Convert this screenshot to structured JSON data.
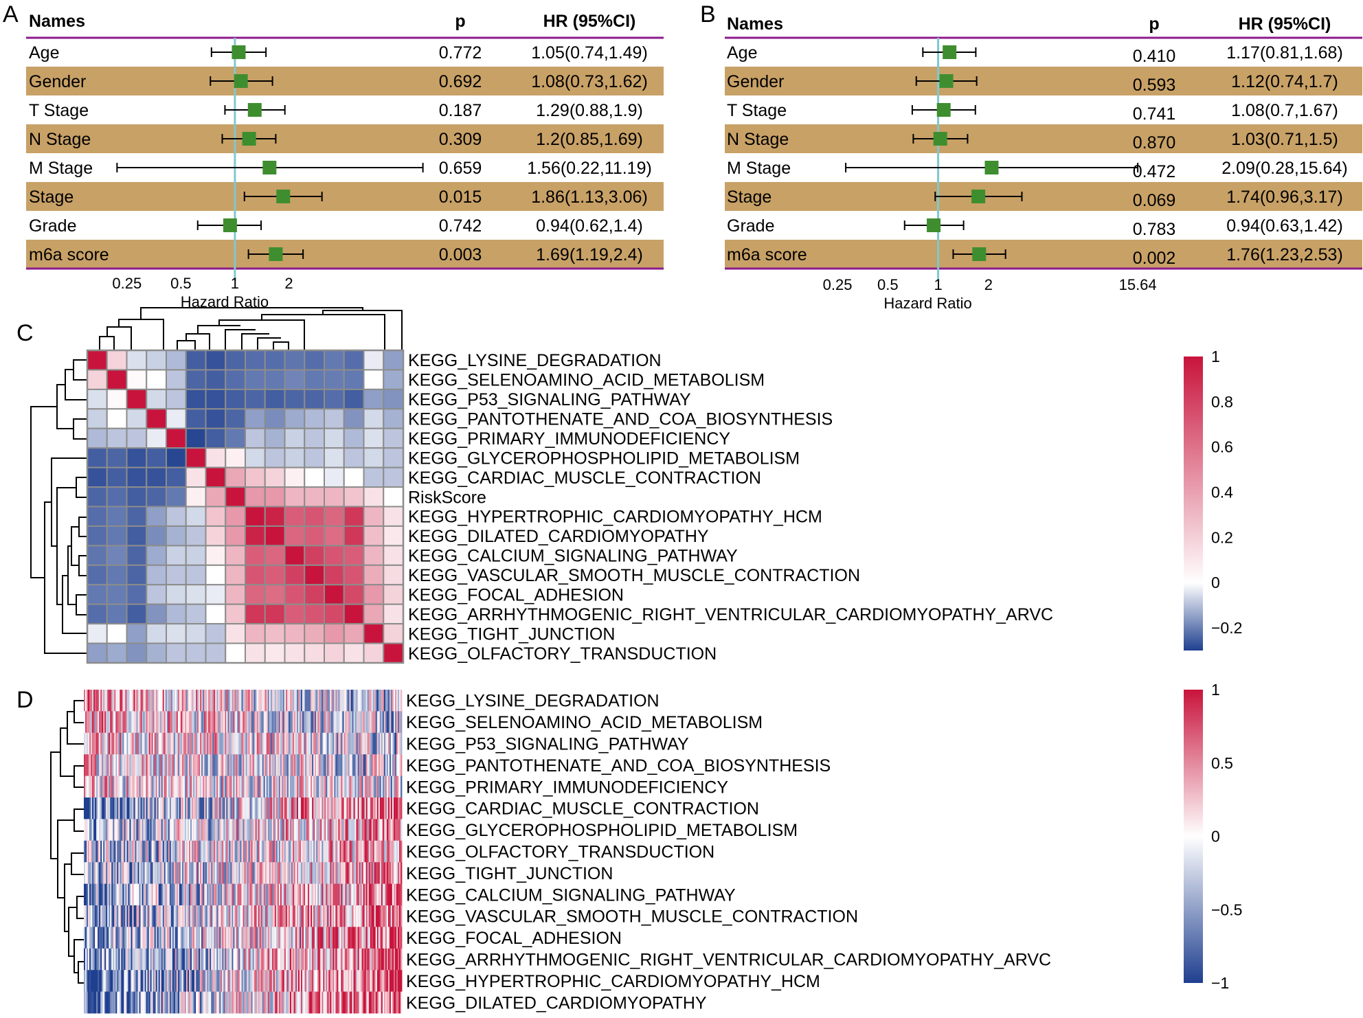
{
  "figure": {
    "panel_labels": [
      "A",
      "B",
      "C",
      "D"
    ]
  },
  "colors": {
    "row_band": "#C8A166",
    "header_rule": "#8B1A8B",
    "ref_line": "#7FC8CF",
    "marker": "#3E8E2F",
    "heat_low": "#1F3F8F",
    "heat_mid": "#FFFFFF",
    "heat_high": "#C8143C"
  },
  "chart_data": [
    {
      "panel": "A",
      "type": "forest",
      "headers": {
        "names": "Names",
        "p": "p",
        "hr": "HR (95%CI)"
      },
      "xlabel": "Hazard Ratio",
      "xscale": "log",
      "xlim": [
        0.135,
        14.0
      ],
      "xticks": [
        {
          "value": 0.25,
          "label": "0.25"
        },
        {
          "value": 0.5,
          "label": "0.5"
        },
        {
          "value": 1,
          "label": "1"
        },
        {
          "value": 2,
          "label": "2"
        }
      ],
      "reference": 1,
      "rows": [
        {
          "name": "Age",
          "hr": 1.05,
          "lo": 0.74,
          "hi": 1.49,
          "p": "0.772",
          "hr_text": "1.05(0.74,1.49)"
        },
        {
          "name": "Gender",
          "hr": 1.08,
          "lo": 0.73,
          "hi": 1.62,
          "p": "0.692",
          "hr_text": "1.08(0.73,1.62)"
        },
        {
          "name": "T Stage",
          "hr": 1.29,
          "lo": 0.88,
          "hi": 1.9,
          "p": "0.187",
          "hr_text": "1.29(0.88,1.9)"
        },
        {
          "name": "N Stage",
          "hr": 1.2,
          "lo": 0.85,
          "hi": 1.69,
          "p": "0.309",
          "hr_text": "1.2(0.85,1.69)"
        },
        {
          "name": "M Stage",
          "hr": 1.56,
          "lo": 0.22,
          "hi": 11.19,
          "p": "0.659",
          "hr_text": "1.56(0.22,11.19)"
        },
        {
          "name": "Stage",
          "hr": 1.86,
          "lo": 1.13,
          "hi": 3.06,
          "p": "0.015",
          "hr_text": "1.86(1.13,3.06)"
        },
        {
          "name": "Grade",
          "hr": 0.94,
          "lo": 0.62,
          "hi": 1.4,
          "p": "0.742",
          "hr_text": "0.94(0.62,1.4)"
        },
        {
          "name": "m6a score",
          "hr": 1.69,
          "lo": 1.19,
          "hi": 2.4,
          "p": "0.003",
          "hr_text": "1.69(1.19,2.4)"
        }
      ]
    },
    {
      "panel": "B",
      "type": "forest",
      "headers": {
        "names": "Names",
        "p": "p",
        "hr": "HR (95%CI)"
      },
      "xlabel": "Hazard Ratio",
      "xscale": "log",
      "xlim": [
        0.13,
        17.5
      ],
      "xticks": [
        {
          "value": 0.25,
          "label": "0.25"
        },
        {
          "value": 0.5,
          "label": "0.5"
        },
        {
          "value": 1,
          "label": "1"
        },
        {
          "value": 2,
          "label": "2"
        },
        {
          "value": 15.64,
          "label": "15.64"
        }
      ],
      "reference": 1,
      "rows": [
        {
          "name": "Age",
          "hr": 1.17,
          "lo": 0.81,
          "hi": 1.68,
          "p": "0.410",
          "hr_text": "1.17(0.81,1.68)"
        },
        {
          "name": "Gender",
          "hr": 1.12,
          "lo": 0.74,
          "hi": 1.7,
          "p": "0.593",
          "hr_text": "1.12(0.74,1.7)"
        },
        {
          "name": "T Stage",
          "hr": 1.08,
          "lo": 0.7,
          "hi": 1.67,
          "p": "0.741",
          "hr_text": "1.08(0.7,1.67)"
        },
        {
          "name": "N Stage",
          "hr": 1.03,
          "lo": 0.71,
          "hi": 1.5,
          "p": "0.870",
          "hr_text": "1.03(0.71,1.5)"
        },
        {
          "name": "M Stage",
          "hr": 2.09,
          "lo": 0.28,
          "hi": 15.64,
          "p": "0.472",
          "hr_text": "2.09(0.28,15.64)"
        },
        {
          "name": "Stage",
          "hr": 1.74,
          "lo": 0.96,
          "hi": 3.17,
          "p": "0.069",
          "hr_text": "1.74(0.96,3.17)"
        },
        {
          "name": "Grade",
          "hr": 0.94,
          "lo": 0.63,
          "hi": 1.42,
          "p": "0.783",
          "hr_text": "0.94(0.63,1.42)"
        },
        {
          "name": "m6a score",
          "hr": 1.76,
          "lo": 1.23,
          "hi": 2.53,
          "p": "0.002",
          "hr_text": "1.76(1.23,2.53)"
        }
      ]
    },
    {
      "panel": "C",
      "type": "heatmap",
      "subtype": "correlation matrix with hierarchical clustering dendrograms",
      "row_labels": [
        "KEGG_LYSINE_DEGRADATION",
        "KEGG_SELENOAMINO_ACID_METABOLISM",
        "KEGG_P53_SIGNALING_PATHWAY",
        "KEGG_PANTOTHENATE_AND_COA_BIOSYNTHESIS",
        "KEGG_PRIMARY_IMMUNODEFICIENCY",
        "KEGG_GLYCEROPHOSPHOLIPID_METABOLISM",
        "KEGG_CARDIAC_MUSCLE_CONTRACTION",
        "RiskScore",
        "KEGG_HYPERTROPHIC_CARDIOMYOPATHY_HCM",
        "KEGG_DILATED_CARDIOMYOPATHY",
        "KEGG_CALCIUM_SIGNALING_PATHWAY",
        "KEGG_VASCULAR_SMOOTH_MUSCLE_CONTRACTION",
        "KEGG_FOCAL_ADHESION",
        "KEGG_ARRHYTHMOGENIC_RIGHT_VENTRICULAR_CARDIOMYOPATHY_ARVC",
        "KEGG_TIGHT_JUNCTION",
        "KEGG_OLFACTORY_TRANSDUCTION"
      ],
      "colorbar": {
        "min": -0.3,
        "max": 1.0,
        "ticks": [
          1,
          0.8,
          0.6,
          0.4,
          0.2,
          0,
          -0.2
        ],
        "tick_labels": [
          "1",
          "0.8",
          "0.6",
          "0.4",
          "0.2",
          "0",
          "−0.2"
        ]
      },
      "values": [
        [
          1.0,
          0.35,
          0.12,
          0.08,
          0.02,
          -0.22,
          -0.25,
          -0.2,
          -0.18,
          -0.18,
          -0.16,
          -0.18,
          -0.15,
          -0.18,
          0.15,
          -0.05
        ],
        [
          0.35,
          1.0,
          0.22,
          0.2,
          0.05,
          -0.2,
          -0.22,
          -0.18,
          -0.15,
          -0.15,
          -0.12,
          -0.15,
          -0.14,
          -0.15,
          0.2,
          -0.02
        ],
        [
          0.12,
          0.22,
          1.0,
          0.1,
          0.05,
          -0.25,
          -0.25,
          -0.22,
          -0.2,
          -0.22,
          -0.2,
          -0.2,
          -0.18,
          -0.22,
          -0.05,
          -0.08
        ],
        [
          0.08,
          0.2,
          0.1,
          1.0,
          0.15,
          -0.22,
          -0.25,
          -0.2,
          -0.05,
          -0.1,
          -0.02,
          0.02,
          0.05,
          -0.08,
          0.1,
          0.0
        ],
        [
          0.02,
          0.05,
          0.05,
          0.15,
          1.0,
          -0.28,
          -0.22,
          -0.15,
          0.05,
          0.0,
          0.08,
          0.05,
          0.1,
          0.02,
          0.12,
          0.05
        ],
        [
          -0.22,
          -0.2,
          -0.25,
          -0.22,
          -0.28,
          1.0,
          0.3,
          0.25,
          0.1,
          0.05,
          0.08,
          0.05,
          0.12,
          0.05,
          0.1,
          0.05
        ],
        [
          -0.25,
          -0.22,
          -0.25,
          -0.25,
          -0.22,
          0.3,
          1.0,
          0.5,
          0.4,
          0.35,
          0.25,
          0.2,
          0.15,
          0.2,
          0.05,
          0.05
        ],
        [
          -0.2,
          -0.18,
          -0.22,
          -0.2,
          -0.15,
          0.25,
          0.5,
          1.0,
          0.55,
          0.55,
          0.45,
          0.45,
          0.45,
          0.4,
          0.3,
          0.2
        ],
        [
          -0.18,
          -0.15,
          -0.2,
          -0.05,
          0.05,
          0.1,
          0.4,
          0.55,
          1.0,
          0.95,
          0.75,
          0.78,
          0.72,
          0.88,
          0.45,
          0.3
        ],
        [
          -0.18,
          -0.15,
          -0.22,
          -0.1,
          0.0,
          0.05,
          0.35,
          0.55,
          0.95,
          1.0,
          0.72,
          0.75,
          0.7,
          0.88,
          0.42,
          0.28
        ],
        [
          -0.16,
          -0.12,
          -0.2,
          -0.02,
          0.08,
          0.08,
          0.25,
          0.45,
          0.75,
          0.72,
          1.0,
          0.85,
          0.78,
          0.75,
          0.45,
          0.3
        ],
        [
          -0.18,
          -0.15,
          -0.2,
          0.02,
          0.05,
          0.05,
          0.2,
          0.45,
          0.78,
          0.75,
          0.85,
          1.0,
          0.85,
          0.78,
          0.48,
          0.32
        ],
        [
          -0.15,
          -0.14,
          -0.18,
          0.05,
          0.1,
          0.12,
          0.15,
          0.45,
          0.72,
          0.7,
          0.78,
          0.85,
          1.0,
          0.82,
          0.55,
          0.35
        ],
        [
          -0.18,
          -0.15,
          -0.22,
          -0.08,
          0.02,
          0.05,
          0.2,
          0.4,
          0.88,
          0.88,
          0.75,
          0.78,
          0.82,
          1.0,
          0.5,
          0.3
        ],
        [
          0.15,
          0.2,
          -0.05,
          0.1,
          0.12,
          0.1,
          0.05,
          0.3,
          0.45,
          0.42,
          0.45,
          0.48,
          0.55,
          0.5,
          1.0,
          0.35
        ],
        [
          -0.05,
          -0.02,
          -0.08,
          0.0,
          0.05,
          0.05,
          0.05,
          0.2,
          0.3,
          0.28,
          0.3,
          0.32,
          0.35,
          0.3,
          0.35,
          1.0
        ]
      ]
    },
    {
      "panel": "D",
      "type": "heatmap",
      "subtype": "per-sample pathway scores ordered by RiskScore, rows clustered",
      "row_labels": [
        "KEGG_LYSINE_DEGRADATION",
        "KEGG_SELENOAMINO_ACID_METABOLISM",
        "KEGG_P53_SIGNALING_PATHWAY",
        "KEGG_PANTOTHENATE_AND_COA_BIOSYNTHESIS",
        "KEGG_PRIMARY_IMMUNODEFICIENCY",
        "KEGG_CARDIAC_MUSCLE_CONTRACTION",
        "KEGG_GLYCEROPHOSPHOLIPID_METABOLISM",
        "KEGG_OLFACTORY_TRANSDUCTION",
        "KEGG_TIGHT_JUNCTION",
        "KEGG_CALCIUM_SIGNALING_PATHWAY",
        "KEGG_VASCULAR_SMOOTH_MUSCLE_CONTRACTION",
        "KEGG_FOCAL_ADHESION",
        "KEGG_ARRHYTHMOGENIC_RIGHT_VENTRICULAR_CARDIOMYOPATHY_ARVC",
        "KEGG_HYPERTROPHIC_CARDIOMYOPATHY_HCM",
        "KEGG_DILATED_CARDIOMYOPATHY"
      ],
      "n_samples": 230,
      "row_trend": [
        -0.35,
        -0.3,
        -0.25,
        -0.2,
        -0.1,
        0.7,
        0.45,
        0.35,
        0.45,
        0.6,
        0.6,
        0.65,
        0.7,
        0.85,
        0.85
      ],
      "colorbar": {
        "min": -1,
        "max": 1,
        "ticks": [
          1,
          0.5,
          0,
          -0.5,
          -1
        ],
        "tick_labels": [
          "1",
          "0.5",
          "0",
          "−0.5",
          "−1"
        ]
      }
    }
  ]
}
